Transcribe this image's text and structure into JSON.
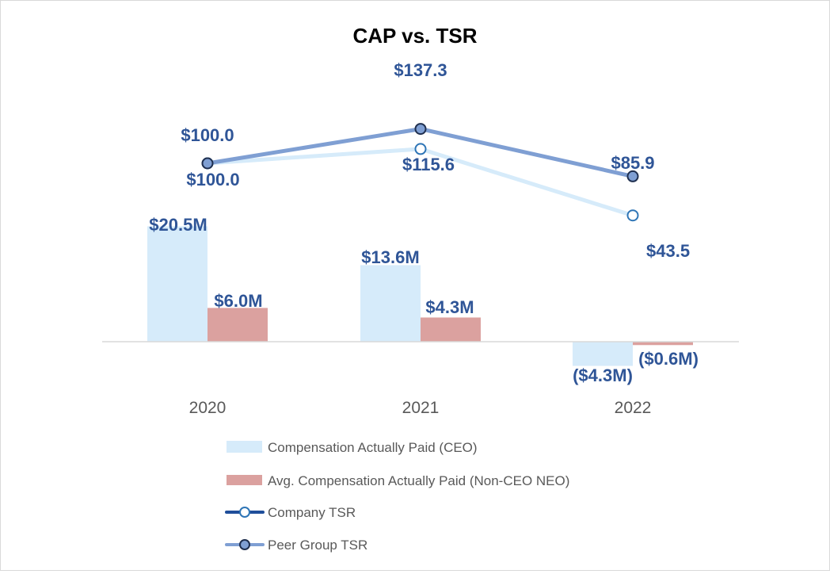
{
  "chart_data": {
    "type": "bar",
    "title": "CAP vs. TSR",
    "categories": [
      "2020",
      "2021",
      "2022"
    ],
    "series": [
      {
        "name": "Compensation Actually Paid (CEO)",
        "kind": "bar",
        "values": [
          20.5,
          13.6,
          -4.3
        ],
        "labels": [
          "$20.5M",
          "$13.6M",
          "($4.3M)"
        ],
        "color": "#d6ebfa"
      },
      {
        "name": "Avg. Compensation Actually Paid (Non-CEO NEO)",
        "kind": "bar",
        "values": [
          6.0,
          4.3,
          -0.6
        ],
        "labels": [
          "$6.0M",
          "$4.3M",
          "($0.6M)"
        ],
        "color": "#dba19f"
      },
      {
        "name": "Company TSR",
        "kind": "line",
        "values": [
          100.0,
          115.6,
          43.5
        ],
        "labels": [
          "$100.0",
          "$115.6",
          "$43.5"
        ],
        "color": "#d6ebfa",
        "marker_stroke": "#2e75b6",
        "marker_fill": "#ffffff"
      },
      {
        "name": "Peer Group TSR",
        "kind": "line",
        "values": [
          100.0,
          137.3,
          85.9
        ],
        "labels": [
          "$100.0",
          "$137.3",
          "$85.9"
        ],
        "color": "#7f9fd3",
        "marker_stroke": "#1f2f4f",
        "marker_fill": "#7f9fd3"
      }
    ],
    "legend_swatches": {
      "company_tsr_line": "#1f4e9a",
      "company_tsr_marker": "#2e75b6"
    },
    "label_color": "#2f5597",
    "legend_position": "bottom",
    "grid": false
  }
}
